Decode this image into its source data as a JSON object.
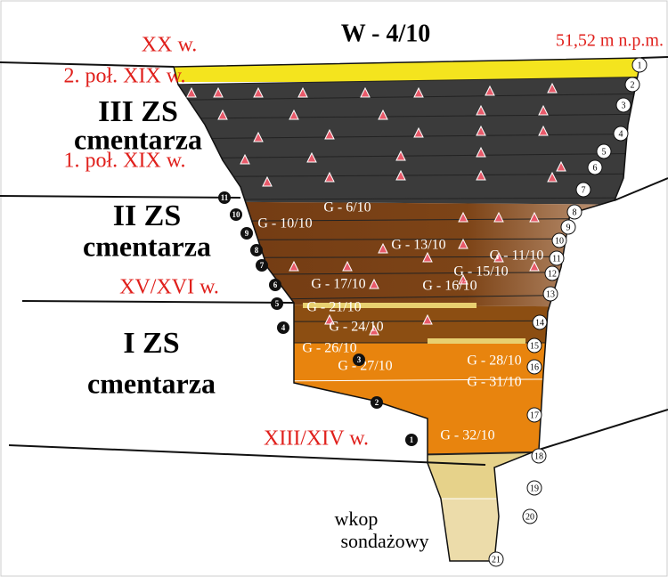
{
  "header": {
    "title": "W - 4/10",
    "elevation": "51,52 m n.p.m."
  },
  "periods": [
    "XX w.",
    "2. poł. XIX w.",
    "1. poł. XIX w.",
    "XV/XVI w.",
    "XIII/XIV w."
  ],
  "zones": [
    {
      "line1": "III ZS",
      "line2": "cmentarza"
    },
    {
      "line1": "II ZS",
      "line2": "cmentarza"
    },
    {
      "line1": "I ZS",
      "line2": "cmentarza"
    }
  ],
  "graves": [
    "G - 6/10",
    "G - 10/10",
    "G - 13/10",
    "G - 11/10",
    "G - 15/10",
    "G - 17/10",
    "G - 16/10",
    "G - 21/10",
    "G - 24/10",
    "G - 26/10",
    "G - 27/10",
    "G - 28/10",
    "G - 31/10",
    "G - 32/10"
  ],
  "layers": [
    "1",
    "2",
    "3",
    "4",
    "5",
    "6",
    "7",
    "8",
    "9",
    "10",
    "11",
    "12",
    "13",
    "14",
    "15",
    "16",
    "17",
    "18",
    "19",
    "20",
    "21"
  ],
  "phases": [
    "1",
    "2",
    "3",
    "4",
    "5",
    "6",
    "7",
    "8",
    "9",
    "10",
    "11"
  ],
  "trench": {
    "line1": "wkop",
    "line2": "sondażowy"
  }
}
